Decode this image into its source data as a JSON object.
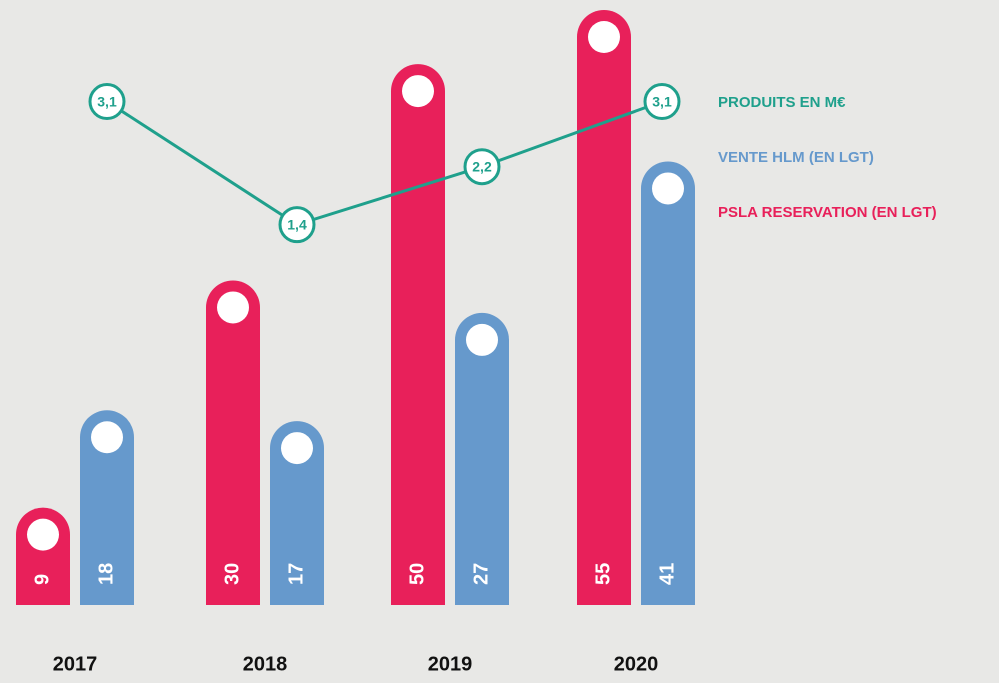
{
  "chart_data": {
    "type": "bar",
    "categories": [
      "2017",
      "2018",
      "2019",
      "2020"
    ],
    "series": [
      {
        "name": "PSLA RESERVATION (EN LGT)",
        "color": "#e8205a",
        "values": [
          9,
          30,
          50,
          55
        ]
      },
      {
        "name": "VENTE HLM (EN LGT)",
        "color": "#6699cc",
        "values": [
          18,
          17,
          27,
          41
        ]
      },
      {
        "name": "PRODUITS EN M€",
        "color": "#1fa08c",
        "type": "line",
        "values": [
          3.1,
          1.4,
          2.2,
          3.1
        ],
        "value_labels": [
          "3,1",
          "1,4",
          "2,2",
          "3,1"
        ]
      }
    ]
  }
}
